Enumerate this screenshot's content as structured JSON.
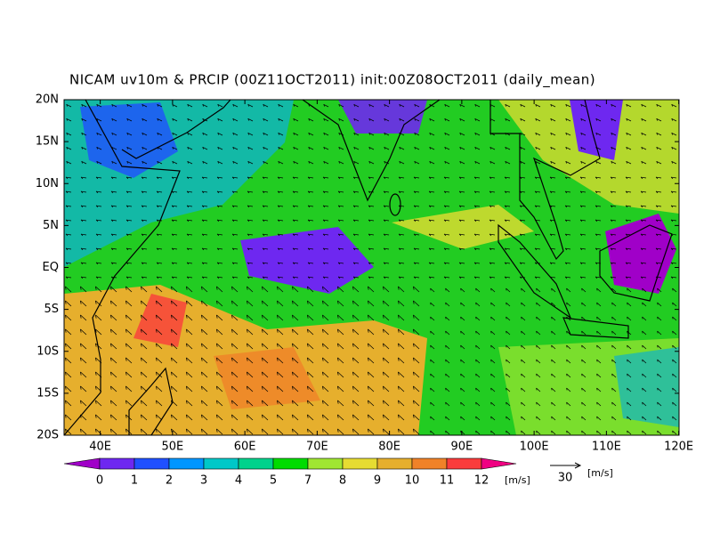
{
  "title": "NICAM uv10m & PRCIP (00Z11OCT2011) init:00Z08OCT2011 (daily_mean)",
  "map": {
    "lat_labels": [
      "20N",
      "15N",
      "10N",
      "5N",
      "EQ",
      "5S",
      "10S",
      "15S",
      "20S"
    ],
    "lon_labels": [
      "40E",
      "50E",
      "60E",
      "70E",
      "80E",
      "90E",
      "100E",
      "110E",
      "120E"
    ]
  },
  "colorbar": {
    "levels": [
      0,
      1,
      2,
      3,
      4,
      5,
      7,
      8,
      9,
      10,
      11,
      12
    ],
    "colors": [
      "#a000c8",
      "#6e28f0",
      "#2050ff",
      "#0096ff",
      "#00c8c8",
      "#00d28c",
      "#00dc00",
      "#a0e632",
      "#e6dc32",
      "#e6af2d",
      "#f08228",
      "#fa3c3c",
      "#f00082"
    ],
    "unit": "[m/s]"
  },
  "vector_key": {
    "value": 30,
    "unit": "[m/s]"
  }
}
